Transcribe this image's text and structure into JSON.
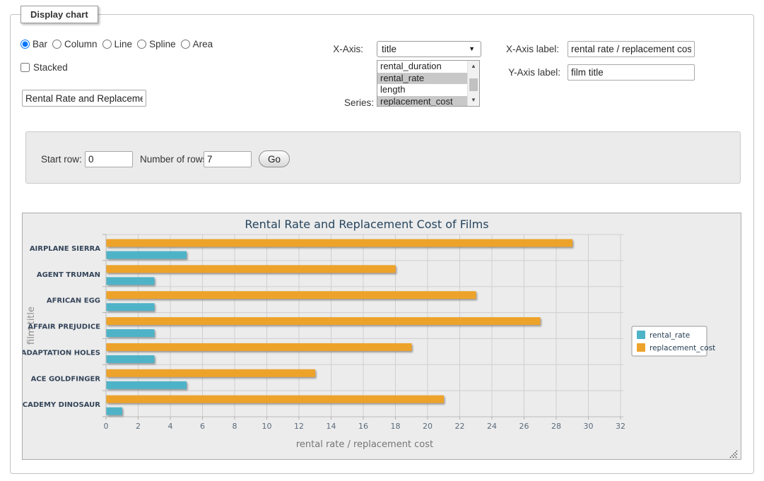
{
  "window": {
    "legend": "Display chart"
  },
  "chart_type": {
    "options": [
      {
        "label": "Bar",
        "selected": true
      },
      {
        "label": "Column",
        "selected": false
      },
      {
        "label": "Line",
        "selected": false
      },
      {
        "label": "Spline",
        "selected": false
      },
      {
        "label": "Area",
        "selected": false
      }
    ]
  },
  "stacked": {
    "label": "Stacked",
    "checked": false
  },
  "chart_title_input": {
    "value": "Rental Rate and Replacement Cost of Films"
  },
  "x_axis_select": {
    "label": "X-Axis:",
    "value": "title",
    "arrow_icon": "▼"
  },
  "series_select": {
    "label": "Series:",
    "options": [
      {
        "label": "rental_duration",
        "selected": false
      },
      {
        "label": "rental_rate",
        "selected": true
      },
      {
        "label": "length",
        "selected": false
      },
      {
        "label": "replacement_cost",
        "selected": true
      }
    ],
    "scroll_up_icon": "▲",
    "scroll_down_icon": "▼"
  },
  "x_axis_label_input": {
    "label": "X-Axis label:",
    "value": "rental rate / replacement cost"
  },
  "y_axis_label_input": {
    "label": "Y-Axis label:",
    "value": "film title"
  },
  "pagination": {
    "start_row": {
      "label": "Start row:",
      "value": "0"
    },
    "number_of_rows": {
      "label": "Number of rows:",
      "value": "7"
    },
    "go_button": "Go"
  },
  "chart_data": {
    "type": "bar",
    "title": "Rental Rate and Replacement Cost of Films",
    "categories": [
      "AIRPLANE SIERRA",
      "AGENT TRUMAN",
      "AFRICAN EGG",
      "AFFAIR PREJUDICE",
      "ADAPTATION HOLES",
      "ACE GOLDFINGER",
      "ACADEMY DINOSAUR"
    ],
    "series": [
      {
        "name": "rental_rate",
        "color": "#4FB3C8",
        "values": [
          4.99,
          2.99,
          2.99,
          2.99,
          2.99,
          4.99,
          0.99
        ]
      },
      {
        "name": "replacement_cost",
        "color": "#EDA32B",
        "values": [
          28.99,
          17.99,
          22.99,
          26.99,
          18.99,
          12.99,
          20.99
        ]
      }
    ],
    "xlabel": "rental rate / replacement cost",
    "ylabel": "film title",
    "xlim": [
      0,
      32
    ],
    "tick_step": 2,
    "grid": true,
    "legend_position": "right",
    "colors": {
      "background": "#ececec",
      "gridline": "#cfcfcf",
      "axis": "#bdbdbd",
      "tick": "#b0b0b0",
      "legend_border": "#999999",
      "legend_bg": "#ffffff"
    }
  }
}
